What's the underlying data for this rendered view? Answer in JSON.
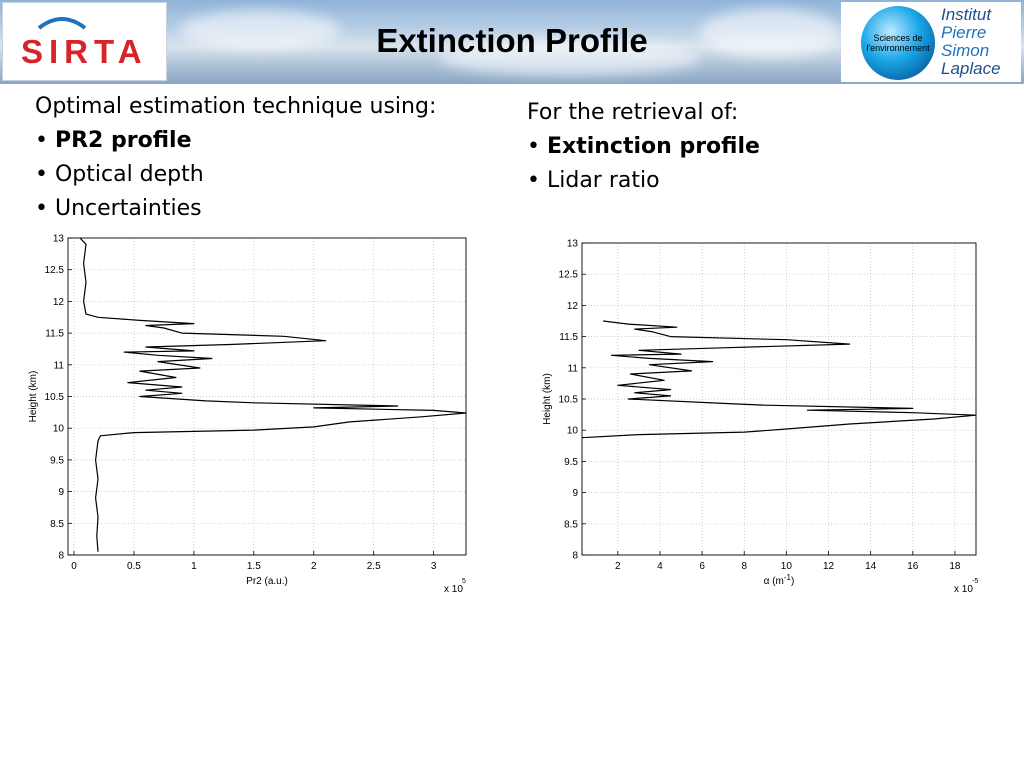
{
  "header": {
    "title": "Extinction Profile",
    "left_logo_text": "SIRTA",
    "right_logo_circle_text": "Sciences de l'environnement",
    "right_logo_lines": [
      "Institut",
      "Pierre",
      "Simon",
      "Laplace"
    ]
  },
  "left_text": {
    "intro": "Optimal estimation technique using:",
    "bullets": [
      "PR2 profile",
      "Optical depth",
      "Uncertainties"
    ]
  },
  "right_text": {
    "intro": "For the retrieval of:",
    "bullets": [
      "Extinction profile",
      "Lidar ratio"
    ]
  },
  "colors": {
    "title": "#000000",
    "sirta_red": "#d9232a",
    "ipsl_blue": "#1e73be",
    "globe": "#1aa7e8"
  },
  "chart_data": [
    {
      "type": "line",
      "xlabel": "Pr2 (a.u.)",
      "ylabel": "Height (km)",
      "x_multiplier_label": "x 10",
      "x_multiplier_exp": "5",
      "xlim": [
        -0.05,
        3.27
      ],
      "ylim": [
        8,
        13
      ],
      "x_ticks": [
        "0",
        "0.5",
        "1",
        "1.5",
        "2",
        "2.5",
        "3"
      ],
      "y_ticks": [
        "8",
        "8.5",
        "9",
        "9.5",
        "10",
        "10.5",
        "11",
        "11.5",
        "12",
        "12.5",
        "13"
      ],
      "grid": true,
      "series": [
        {
          "values": [
            [
              0.2,
              8.05
            ],
            [
              0.19,
              8.3
            ],
            [
              0.2,
              8.6
            ],
            [
              0.18,
              8.9
            ],
            [
              0.2,
              9.2
            ],
            [
              0.18,
              9.5
            ],
            [
              0.2,
              9.8
            ],
            [
              0.22,
              9.88
            ],
            [
              0.5,
              9.93
            ],
            [
              1.5,
              9.97
            ],
            [
              2.0,
              10.02
            ],
            [
              2.3,
              10.1
            ],
            [
              2.9,
              10.18
            ],
            [
              3.27,
              10.24
            ],
            [
              3.0,
              10.28
            ],
            [
              2.0,
              10.32
            ],
            [
              2.7,
              10.35
            ],
            [
              1.5,
              10.4
            ],
            [
              1.1,
              10.43
            ],
            [
              0.55,
              10.5
            ],
            [
              0.9,
              10.55
            ],
            [
              0.6,
              10.6
            ],
            [
              0.9,
              10.65
            ],
            [
              0.45,
              10.72
            ],
            [
              0.85,
              10.8
            ],
            [
              0.55,
              10.9
            ],
            [
              1.05,
              10.95
            ],
            [
              0.7,
              11.05
            ],
            [
              1.15,
              11.1
            ],
            [
              0.7,
              11.15
            ],
            [
              0.42,
              11.2
            ],
            [
              1.0,
              11.22
            ],
            [
              0.6,
              11.28
            ],
            [
              1.3,
              11.32
            ],
            [
              2.1,
              11.38
            ],
            [
              1.75,
              11.45
            ],
            [
              0.9,
              11.5
            ],
            [
              0.75,
              11.58
            ],
            [
              0.6,
              11.62
            ],
            [
              1.0,
              11.65
            ],
            [
              0.55,
              11.7
            ],
            [
              0.2,
              11.75
            ],
            [
              0.1,
              11.8
            ],
            [
              0.08,
              12.0
            ],
            [
              0.1,
              12.3
            ],
            [
              0.08,
              12.6
            ],
            [
              0.1,
              12.9
            ],
            [
              0.05,
              13.0
            ]
          ]
        }
      ]
    },
    {
      "type": "line",
      "xlabel": "α (m",
      "xlabel_exp": "-1",
      "xlabel_end": ")",
      "ylabel": "Height (km)",
      "x_multiplier_label": "x 10",
      "x_multiplier_exp": "-5",
      "xlim": [
        0.3,
        19.0
      ],
      "ylim": [
        8,
        13
      ],
      "x_ticks": [
        "2",
        "4",
        "6",
        "8",
        "10",
        "12",
        "14",
        "16",
        "18"
      ],
      "y_ticks": [
        "8",
        "8.5",
        "9",
        "9.5",
        "10",
        "10.5",
        "11",
        "11.5",
        "12",
        "12.5",
        "13"
      ],
      "grid": true,
      "series": [
        {
          "values": [
            [
              0.3,
              9.88
            ],
            [
              3,
              9.93
            ],
            [
              8,
              9.97
            ],
            [
              10,
              10.02
            ],
            [
              13,
              10.1
            ],
            [
              17,
              10.18
            ],
            [
              19,
              10.24
            ],
            [
              16,
              10.28
            ],
            [
              11,
              10.32
            ],
            [
              16,
              10.35
            ],
            [
              9,
              10.4
            ],
            [
              7,
              10.43
            ],
            [
              2.5,
              10.5
            ],
            [
              4.5,
              10.55
            ],
            [
              2.8,
              10.6
            ],
            [
              4.5,
              10.65
            ],
            [
              2,
              10.72
            ],
            [
              4.2,
              10.8
            ],
            [
              2.6,
              10.9
            ],
            [
              5.5,
              10.95
            ],
            [
              3.5,
              11.05
            ],
            [
              6.5,
              11.1
            ],
            [
              3.5,
              11.15
            ],
            [
              1.7,
              11.2
            ],
            [
              5,
              11.22
            ],
            [
              3,
              11.28
            ],
            [
              7,
              11.32
            ],
            [
              13,
              11.38
            ],
            [
              10,
              11.45
            ],
            [
              4.5,
              11.5
            ],
            [
              3.6,
              11.58
            ],
            [
              2.8,
              11.62
            ],
            [
              4.8,
              11.65
            ],
            [
              2.5,
              11.7
            ],
            [
              1.3,
              11.75
            ]
          ]
        }
      ]
    }
  ]
}
